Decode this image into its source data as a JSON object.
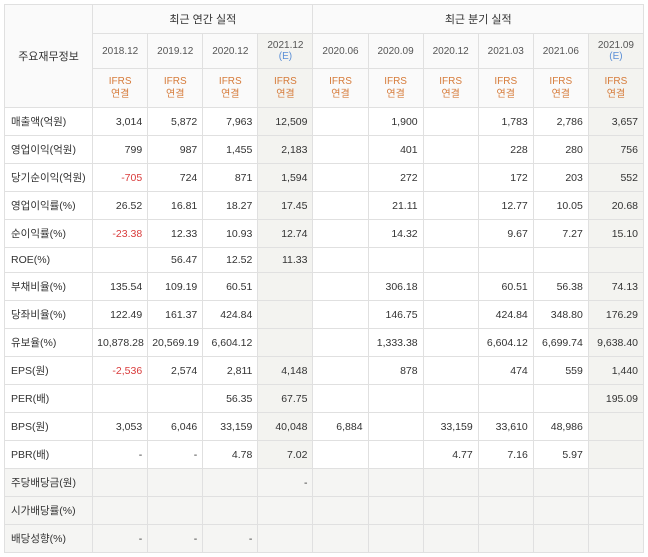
{
  "headers": {
    "main_label": "주요재무정보",
    "annual_group": "최근 연간 실적",
    "quarter_group": "최근 분기 실적",
    "ifrs": "IFRS",
    "ifrs_sub": "연결",
    "estimate_suffix": "(E)",
    "annual_periods": [
      "2018.12",
      "2019.12",
      "2020.12",
      "2021.12"
    ],
    "annual_estimate": [
      false,
      false,
      false,
      true
    ],
    "quarter_periods": [
      "2020.06",
      "2020.09",
      "2020.12",
      "2021.03",
      "2021.06",
      "2021.09"
    ],
    "quarter_estimate": [
      false,
      false,
      false,
      false,
      false,
      true
    ]
  },
  "rows": [
    {
      "label": "매출액(억원)",
      "a": [
        "3,014",
        "5,872",
        "7,963",
        "12,509"
      ],
      "q": [
        "",
        "1,900",
        "",
        "1,783",
        "2,786",
        "3,657"
      ],
      "grey": false
    },
    {
      "label": "영업이익(억원)",
      "a": [
        "799",
        "987",
        "1,455",
        "2,183"
      ],
      "q": [
        "",
        "401",
        "",
        "228",
        "280",
        "756"
      ],
      "grey": false
    },
    {
      "label": "당기순이익(억원)",
      "a": [
        "-705",
        "724",
        "871",
        "1,594"
      ],
      "q": [
        "",
        "272",
        "",
        "172",
        "203",
        "552"
      ],
      "grey": false,
      "neg_a": [
        true,
        false,
        false,
        false
      ]
    },
    {
      "label": "영업이익률(%)",
      "a": [
        "26.52",
        "16.81",
        "18.27",
        "17.45"
      ],
      "q": [
        "",
        "21.11",
        "",
        "12.77",
        "10.05",
        "20.68"
      ],
      "grey": false
    },
    {
      "label": "순이익률(%)",
      "a": [
        "-23.38",
        "12.33",
        "10.93",
        "12.74"
      ],
      "q": [
        "",
        "14.32",
        "",
        "9.67",
        "7.27",
        "15.10"
      ],
      "grey": false,
      "neg_a": [
        true,
        false,
        false,
        false
      ]
    },
    {
      "label": "ROE(%)",
      "a": [
        "",
        "56.47",
        "12.52",
        "11.33"
      ],
      "q": [
        "",
        "",
        "",
        "",
        "",
        ""
      ],
      "grey": false
    },
    {
      "label": "부채비율(%)",
      "a": [
        "135.54",
        "109.19",
        "60.51",
        ""
      ],
      "q": [
        "",
        "306.18",
        "",
        "60.51",
        "56.38",
        "74.13"
      ],
      "grey": false
    },
    {
      "label": "당좌비율(%)",
      "a": [
        "122.49",
        "161.37",
        "424.84",
        ""
      ],
      "q": [
        "",
        "146.75",
        "",
        "424.84",
        "348.80",
        "176.29"
      ],
      "grey": false
    },
    {
      "label": "유보율(%)",
      "a": [
        "10,878.28",
        "20,569.19",
        "6,604.12",
        ""
      ],
      "q": [
        "",
        "1,333.38",
        "",
        "6,604.12",
        "6,699.74",
        "9,638.40"
      ],
      "grey": false
    },
    {
      "label": "EPS(원)",
      "a": [
        "-2,536",
        "2,574",
        "2,811",
        "4,148"
      ],
      "q": [
        "",
        "878",
        "",
        "474",
        "559",
        "1,440"
      ],
      "grey": false,
      "neg_a": [
        true,
        false,
        false,
        false
      ]
    },
    {
      "label": "PER(배)",
      "a": [
        "",
        "",
        "56.35",
        "67.75"
      ],
      "q": [
        "",
        "",
        "",
        "",
        "",
        "195.09"
      ],
      "grey": false
    },
    {
      "label": "BPS(원)",
      "a": [
        "3,053",
        "6,046",
        "33,159",
        "40,048"
      ],
      "q": [
        "6,884",
        "",
        "33,159",
        "33,610",
        "48,986",
        ""
      ],
      "grey": false
    },
    {
      "label": "PBR(배)",
      "a": [
        "-",
        "-",
        "4.78",
        "7.02"
      ],
      "q": [
        "",
        "",
        "4.77",
        "7.16",
        "5.97",
        ""
      ],
      "grey": false
    },
    {
      "label": "주당배당금(원)",
      "a": [
        "",
        "",
        "",
        "-"
      ],
      "q": [
        "",
        "",
        "",
        "",
        "",
        ""
      ],
      "grey": true
    },
    {
      "label": "시가배당률(%)",
      "a": [
        "",
        "",
        "",
        ""
      ],
      "q": [
        "",
        "",
        "",
        "",
        "",
        ""
      ],
      "grey": true
    },
    {
      "label": "배당성향(%)",
      "a": [
        "-",
        "-",
        "-",
        ""
      ],
      "q": [
        "",
        "",
        "",
        "",
        "",
        ""
      ],
      "grey": true
    }
  ],
  "highlight_annual_col": 3,
  "highlight_quarter_col": 5,
  "colors": {
    "border": "#e0e0e0",
    "header_bg": "#fafafa",
    "highlight_bg": "#f3f3f0",
    "grey_row_bg": "#f5f5f3",
    "text": "#333333",
    "ifrs": "#d67b3a",
    "estimate": "#5b8fd6",
    "negative": "#d93b3b"
  }
}
